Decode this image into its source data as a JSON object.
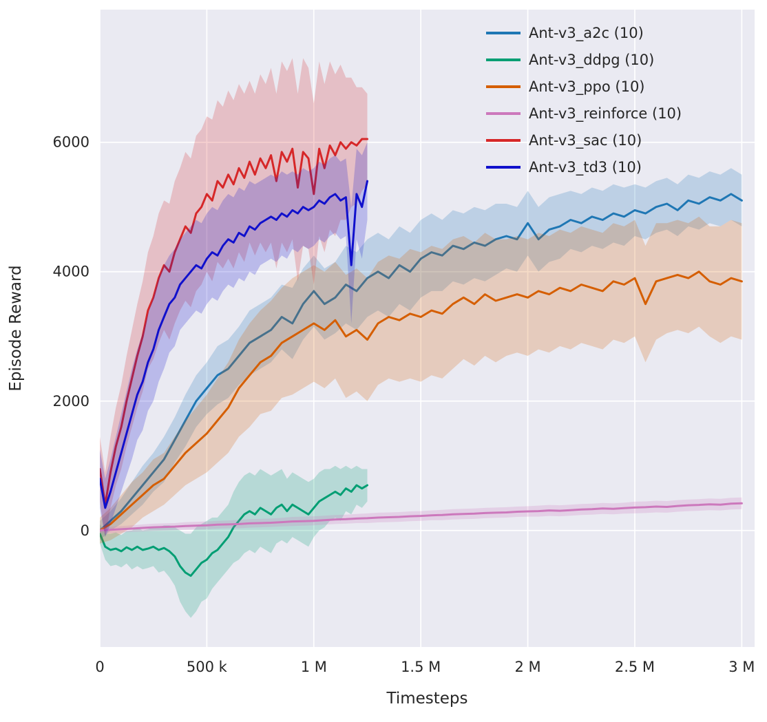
{
  "figure": {
    "background": "#ffffff",
    "plot_background": "#eaeaf2",
    "grid_color": "#ffffff"
  },
  "chart_data": {
    "type": "line",
    "title": "",
    "xlabel": "Timesteps",
    "ylabel": "Episode Reward",
    "xlim": [
      0,
      3060000
    ],
    "ylim": [
      -1800,
      8050
    ],
    "grid": true,
    "legend_position": "top-right",
    "xticks": {
      "values": [
        0,
        500000,
        1000000,
        1500000,
        2000000,
        2500000,
        3000000
      ],
      "labels": [
        "0",
        "500 k",
        "1 M",
        "1.5 M",
        "2 M",
        "2.5 M",
        "3 M"
      ]
    },
    "yticks": {
      "values": [
        0,
        2000,
        4000,
        6000
      ],
      "labels": [
        "0",
        "2000",
        "4000",
        "6000"
      ]
    },
    "band_opacity": 0.22,
    "series": [
      {
        "name": "Ant-v3_a2c (10)",
        "color": "#1f77b4",
        "x_step": 50000,
        "values": [
          0,
          150,
          300,
          500,
          700,
          900,
          1100,
          1400,
          1700,
          2000,
          2200,
          2400,
          2500,
          2700,
          2900,
          3000,
          3100,
          3300,
          3200,
          3500,
          3700,
          3500,
          3600,
          3800,
          3700,
          3900,
          4000,
          3900,
          4100,
          4000,
          4200,
          4300,
          4250,
          4400,
          4350,
          4450,
          4400,
          4500,
          4550,
          4500,
          4750,
          4500,
          4650,
          4700,
          4800,
          4750,
          4850,
          4800,
          4900,
          4850,
          4950,
          4900,
          5000,
          5050,
          4950,
          5100,
          5050,
          5150,
          5100,
          5200,
          5100
        ],
        "band": [
          150,
          150,
          200,
          250,
          300,
          300,
          350,
          350,
          400,
          400,
          400,
          450,
          450,
          450,
          500,
          500,
          500,
          500,
          550,
          550,
          550,
          550,
          550,
          600,
          600,
          600,
          600,
          600,
          600,
          600,
          600,
          600,
          550,
          550,
          550,
          550,
          550,
          550,
          500,
          500,
          500,
          500,
          500,
          500,
          450,
          450,
          450,
          450,
          450,
          450,
          400,
          400,
          400,
          400,
          400,
          400,
          400,
          400,
          400,
          400,
          400
        ]
      },
      {
        "name": "Ant-v3_ddpg (10)",
        "color": "#029e73",
        "x_step": 25000,
        "values": [
          -50,
          -250,
          -300,
          -280,
          -320,
          -260,
          -300,
          -250,
          -300,
          -280,
          -250,
          -300,
          -270,
          -320,
          -400,
          -550,
          -650,
          -700,
          -600,
          -500,
          -450,
          -350,
          -300,
          -200,
          -100,
          50,
          150,
          250,
          300,
          250,
          350,
          300,
          250,
          350,
          400,
          300,
          400,
          350,
          300,
          250,
          350,
          450,
          500,
          550,
          600,
          550,
          650,
          600,
          700,
          650,
          700
        ],
        "band": [
          150,
          200,
          250,
          250,
          250,
          250,
          300,
          300,
          300,
          300,
          300,
          350,
          350,
          400,
          450,
          550,
          600,
          650,
          650,
          600,
          600,
          550,
          500,
          500,
          500,
          550,
          600,
          600,
          600,
          600,
          600,
          600,
          600,
          550,
          550,
          500,
          500,
          500,
          500,
          500,
          450,
          450,
          450,
          400,
          400,
          400,
          350,
          350,
          300,
          300,
          250
        ]
      },
      {
        "name": "Ant-v3_ppo (10)",
        "color": "#d55e00",
        "x_step": 50000,
        "values": [
          0,
          100,
          250,
          400,
          550,
          700,
          800,
          1000,
          1200,
          1350,
          1500,
          1700,
          1900,
          2200,
          2400,
          2600,
          2700,
          2900,
          3000,
          3100,
          3200,
          3100,
          3250,
          3000,
          3100,
          2950,
          3200,
          3300,
          3250,
          3350,
          3300,
          3400,
          3350,
          3500,
          3600,
          3500,
          3650,
          3550,
          3600,
          3650,
          3600,
          3700,
          3650,
          3750,
          3700,
          3800,
          3750,
          3700,
          3850,
          3800,
          3900,
          3500,
          3850,
          3900,
          3950,
          3900,
          4000,
          3850,
          3800,
          3900,
          3850
        ],
        "band": [
          200,
          250,
          300,
          350,
          350,
          400,
          400,
          450,
          500,
          550,
          600,
          650,
          700,
          750,
          800,
          800,
          850,
          850,
          900,
          900,
          900,
          900,
          900,
          950,
          950,
          950,
          950,
          950,
          950,
          1000,
          1000,
          1000,
          1000,
          1000,
          950,
          950,
          950,
          950,
          900,
          900,
          900,
          900,
          900,
          900,
          900,
          900,
          900,
          900,
          900,
          900,
          900,
          900,
          900,
          850,
          850,
          850,
          850,
          850,
          900,
          900,
          900
        ]
      },
      {
        "name": "Ant-v3_reinforce (10)",
        "color": "#cc78bc",
        "x_step": 50000,
        "values": [
          0,
          10,
          20,
          30,
          40,
          50,
          55,
          60,
          70,
          75,
          80,
          90,
          95,
          100,
          110,
          115,
          120,
          130,
          140,
          145,
          150,
          160,
          170,
          175,
          185,
          190,
          200,
          205,
          210,
          220,
          225,
          235,
          240,
          250,
          255,
          260,
          270,
          275,
          280,
          290,
          295,
          300,
          310,
          305,
          315,
          325,
          330,
          340,
          335,
          345,
          355,
          360,
          370,
          365,
          380,
          390,
          395,
          405,
          400,
          415,
          420
        ],
        "band": [
          50,
          50,
          50,
          50,
          55,
          55,
          55,
          55,
          60,
          60,
          60,
          60,
          60,
          65,
          65,
          65,
          65,
          65,
          70,
          70,
          70,
          70,
          70,
          70,
          70,
          75,
          75,
          75,
          75,
          75,
          75,
          75,
          80,
          80,
          80,
          80,
          80,
          80,
          80,
          80,
          80,
          85,
          85,
          85,
          85,
          85,
          85,
          85,
          85,
          85,
          90,
          90,
          90,
          90,
          90,
          90,
          90,
          90,
          90,
          90,
          90
        ]
      },
      {
        "name": "Ant-v3_sac (10)",
        "color": "#d62728",
        "x_step": 25000,
        "values": [
          950,
          400,
          900,
          1300,
          1600,
          2000,
          2350,
          2700,
          3000,
          3400,
          3600,
          3900,
          4100,
          4000,
          4300,
          4500,
          4700,
          4600,
          4900,
          5000,
          5200,
          5100,
          5400,
          5300,
          5500,
          5350,
          5600,
          5450,
          5700,
          5500,
          5750,
          5600,
          5800,
          5400,
          5850,
          5700,
          5900,
          5300,
          5850,
          5750,
          5200,
          5900,
          5600,
          5950,
          5800,
          6000,
          5900,
          6000,
          5950,
          6050,
          6050
        ],
        "band": [
          500,
          500,
          550,
          600,
          650,
          700,
          750,
          800,
          850,
          900,
          950,
          1000,
          1000,
          1050,
          1100,
          1100,
          1150,
          1150,
          1200,
          1200,
          1200,
          1250,
          1250,
          1250,
          1300,
          1300,
          1300,
          1300,
          1250,
          1250,
          1300,
          1300,
          1350,
          1350,
          1400,
          1400,
          1400,
          1450,
          1450,
          1400,
          1400,
          1350,
          1300,
          1300,
          1250,
          1200,
          1100,
          1000,
          900,
          800,
          700
        ]
      },
      {
        "name": "Ant-v3_td3 (10)",
        "color": "#1010cc",
        "x_step": 25000,
        "values": [
          800,
          350,
          600,
          900,
          1200,
          1500,
          1800,
          2100,
          2300,
          2600,
          2800,
          3100,
          3300,
          3500,
          3600,
          3800,
          3900,
          4000,
          4100,
          4050,
          4200,
          4300,
          4250,
          4400,
          4500,
          4450,
          4600,
          4550,
          4700,
          4650,
          4750,
          4800,
          4850,
          4800,
          4900,
          4850,
          4950,
          4900,
          5000,
          4950,
          5000,
          5100,
          5050,
          5150,
          5200,
          5100,
          5150,
          4100,
          5200,
          5000,
          5400
        ],
        "band": [
          450,
          450,
          500,
          550,
          600,
          650,
          700,
          700,
          750,
          750,
          800,
          800,
          800,
          750,
          750,
          700,
          700,
          700,
          700,
          700,
          700,
          700,
          700,
          700,
          700,
          700,
          700,
          700,
          700,
          700,
          650,
          650,
          650,
          650,
          650,
          650,
          600,
          600,
          600,
          600,
          600,
          600,
          600,
          600,
          600,
          600,
          600,
          900,
          700,
          800,
          600
        ]
      }
    ]
  }
}
